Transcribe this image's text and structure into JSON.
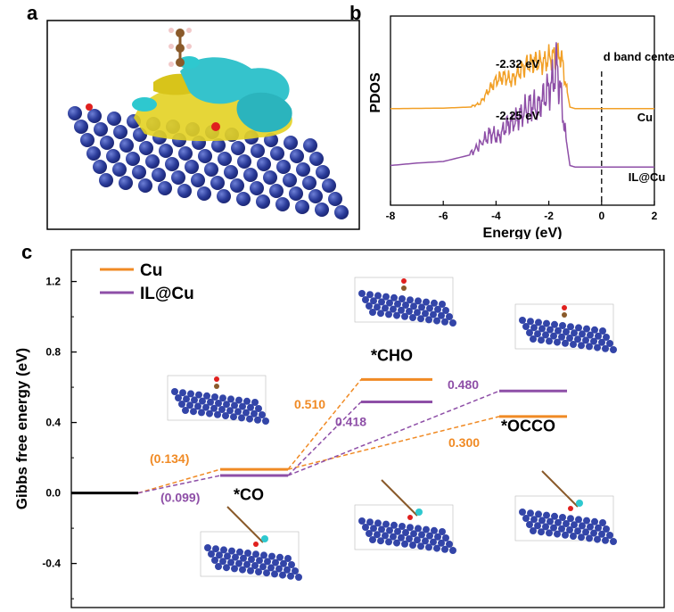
{
  "panels": {
    "a": "a",
    "b": "b",
    "c": "c"
  },
  "chart_data": [
    {
      "panel": "a",
      "type": "other",
      "description_label": "",
      "colors": {
        "atom": "#2e3f9e",
        "iso_yellow": "#e6d21c",
        "iso_cyan": "#2ec8cf",
        "O": "#e0201e",
        "C": "#8a5a2a",
        "H": "#f2c9c9"
      }
    },
    {
      "panel": "b",
      "type": "line",
      "xlabel": "Energy (eV)",
      "ylabel": "PDOS",
      "xlim": [
        -8,
        2
      ],
      "xticks": [
        "-8",
        "-6",
        "-4",
        "-2",
        "0",
        "2"
      ],
      "annotations": {
        "d_band_center_label": "d band center",
        "cu_center": "-2.32 eV",
        "ilcu_center": "-2.25 eV"
      },
      "series": [
        {
          "name": "Cu",
          "color": "#f2a027",
          "x": [
            -8,
            -6,
            -5,
            -4.6,
            -4.3,
            -4.0,
            -3.7,
            -3.4,
            -3.1,
            -2.8,
            -2.5,
            -2.2,
            -1.9,
            -1.7,
            -1.55,
            -1.4,
            -1.2,
            -1,
            0,
            2
          ],
          "y": [
            0.02,
            0.03,
            0.05,
            0.12,
            0.35,
            0.55,
            0.62,
            0.55,
            0.72,
            0.85,
            0.9,
            0.88,
            1.0,
            0.95,
            1.05,
            0.6,
            0.05,
            0.02,
            0.02,
            0.02
          ]
        },
        {
          "name": "IL@Cu",
          "color": "#8e4fa7",
          "x": [
            -8,
            -7,
            -6,
            -5,
            -4.5,
            -4.2,
            -3.9,
            -3.6,
            -3.3,
            -3.0,
            -2.7,
            -2.4,
            -2.1,
            -1.9,
            -1.7,
            -1.55,
            -1.4,
            -1.2,
            -1,
            0,
            2
          ],
          "y": [
            0.05,
            0.08,
            0.1,
            0.18,
            0.35,
            0.45,
            0.4,
            0.55,
            0.6,
            0.7,
            0.8,
            0.78,
            0.95,
            1.05,
            1.3,
            0.95,
            0.5,
            0.05,
            0.03,
            0.03,
            0.03
          ]
        }
      ]
    },
    {
      "panel": "c",
      "type": "line",
      "ylabel": "Gibbs free energy (eV)",
      "ylim": [
        -0.65,
        1.38
      ],
      "yticks": [
        "1.2",
        "0.8",
        "0.4",
        "0.0",
        "-0.4"
      ],
      "legend": [
        "Cu",
        "IL@Cu"
      ],
      "series": [
        {
          "name": "Cu",
          "color": "#f08a24",
          "levels": {
            "initial": 0.0,
            "*CO": 0.134,
            "*CHO": 0.644,
            "*OCCO": 0.434
          }
        },
        {
          "name": "IL@Cu",
          "color": "#8e4fa7",
          "levels": {
            "initial": 0.0,
            "*CO": 0.099,
            "*CHO": 0.517,
            "*OCCO": 0.579
          }
        }
      ],
      "state_labels": {
        "co": "*CO",
        "cho": "*CHO",
        "occo": "*OCCO"
      },
      "value_labels": {
        "cu_co": "(0.134)",
        "il_co": "(0.099)",
        "cu_cho": "0.510",
        "il_cho": "0.418",
        "il_occo": "0.480",
        "cu_occo": "0.300"
      }
    }
  ]
}
